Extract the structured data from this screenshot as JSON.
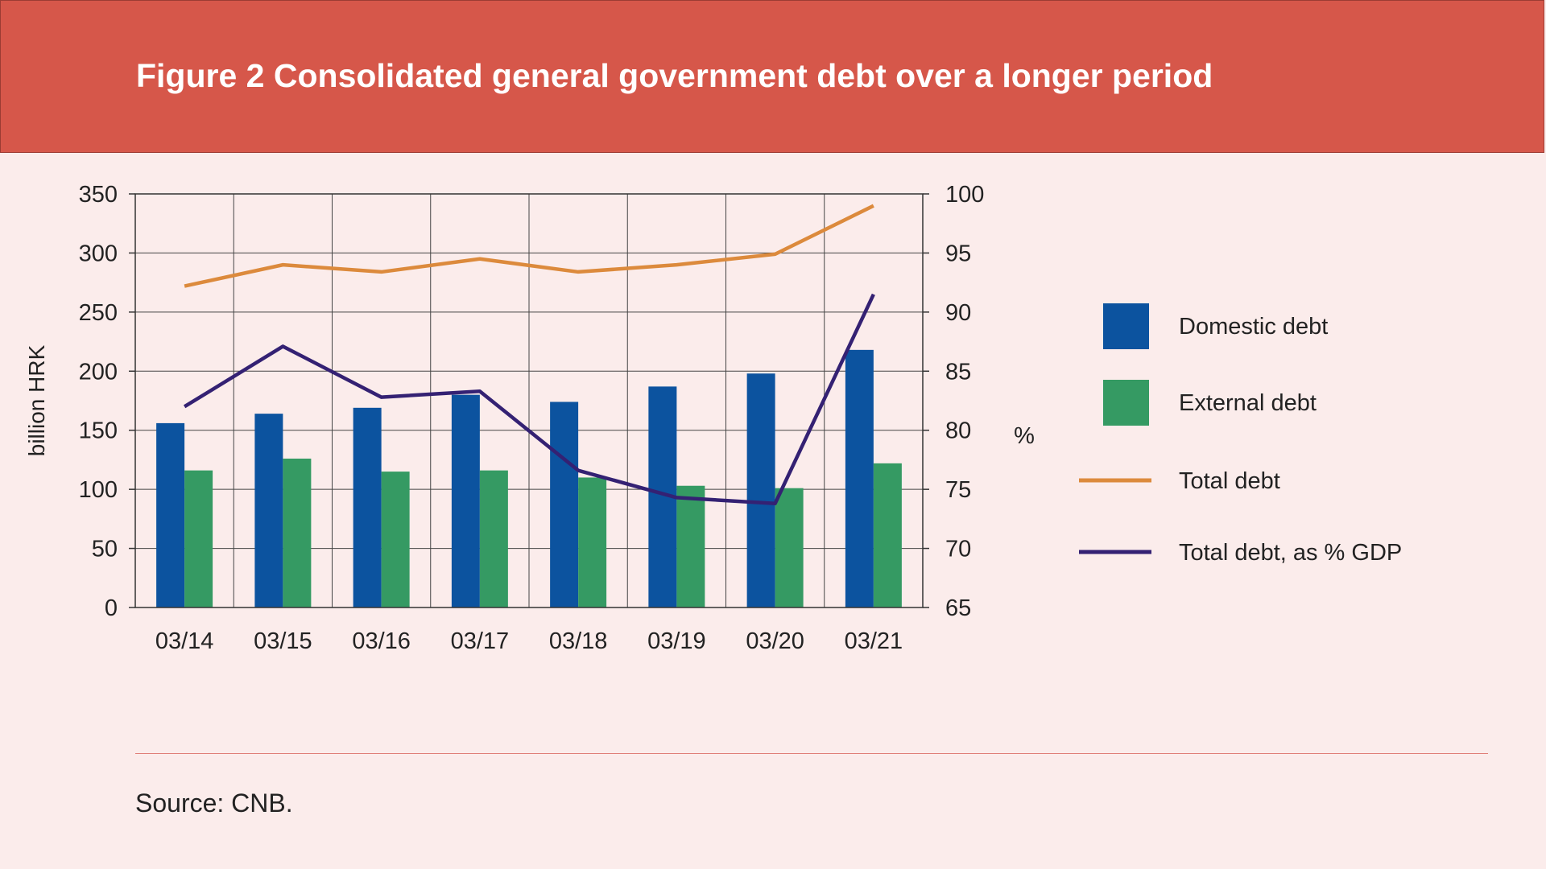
{
  "header": {
    "title": "Figure 2 Consolidated general government debt over a longer period"
  },
  "source": "Source: CNB.",
  "colors": {
    "header_bg": "#d6574a",
    "page_bg": "#fbeceb",
    "domestic": "#0c539f",
    "external": "#359a63",
    "total_debt": "#dc8a3c",
    "debt_gdp": "#342173"
  },
  "chart_data": {
    "type": "bar",
    "title": "Figure 2 Consolidated general government debt over a longer period",
    "categories": [
      "03/14",
      "03/15",
      "03/16",
      "03/17",
      "03/18",
      "03/19",
      "03/20",
      "03/21"
    ],
    "ylabel": "billion HRK",
    "ylabel_right": "%",
    "ylim": [
      0,
      350
    ],
    "ylim_right": [
      65,
      100
    ],
    "yticks": [
      "350",
      "300",
      "250",
      "200",
      "150",
      "100",
      "50",
      "0"
    ],
    "yticks_right": [
      "100",
      "95",
      "90",
      "85",
      "80",
      "75",
      "70",
      "65"
    ],
    "grid": true,
    "legend_position": "right",
    "series": [
      {
        "name": "Domestic debt",
        "type": "bar",
        "axis": "left",
        "color": "#0c539f",
        "values": [
          156,
          164,
          169,
          180,
          174,
          187,
          198,
          218
        ]
      },
      {
        "name": "External debt",
        "type": "bar",
        "axis": "left",
        "color": "#359a63",
        "values": [
          116,
          126,
          115,
          116,
          110,
          103,
          101,
          122
        ]
      },
      {
        "name": "Total debt",
        "type": "line",
        "axis": "left",
        "color": "#dc8a3c",
        "values": [
          272,
          290,
          284,
          295,
          284,
          290,
          299,
          340
        ]
      },
      {
        "name": "Total debt, as % GDP",
        "type": "line",
        "axis": "right",
        "color": "#342173",
        "values": [
          82.0,
          87.1,
          82.8,
          83.3,
          76.6,
          74.3,
          73.8,
          91.5
        ]
      }
    ]
  }
}
